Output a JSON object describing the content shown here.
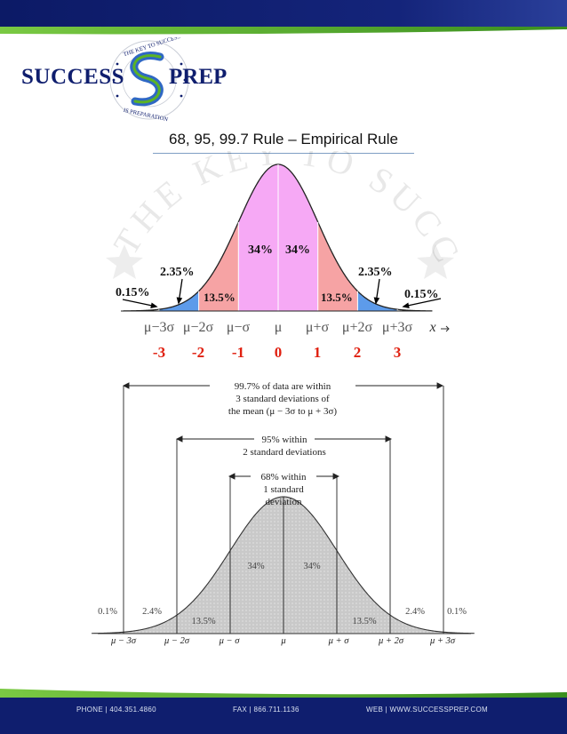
{
  "logo": {
    "left_word": "SUCCESS",
    "right_word": "PREP",
    "ring_top": "THE KEY TO SUCCESS",
    "ring_bottom": "IS PREPARATION"
  },
  "title": "68, 95, 99.7 Rule – Empirical Rule",
  "watermark_text": "THE KEY TO SUCCESS",
  "chart_data": [
    {
      "type": "area",
      "regions": [
        {
          "label": "34%",
          "from_sd": 0,
          "to_sd": 1
        },
        {
          "label": "34%",
          "from_sd": -1,
          "to_sd": 0
        },
        {
          "label": "13.5%",
          "from_sd": -2,
          "to_sd": -1
        },
        {
          "label": "13.5%",
          "from_sd": 1,
          "to_sd": 2
        },
        {
          "label": "2.35%",
          "from_sd": -3,
          "to_sd": -2
        },
        {
          "label": "2.35%",
          "from_sd": 2,
          "to_sd": 3
        },
        {
          "label": "0.15%",
          "from_sd": -4,
          "to_sd": -3
        },
        {
          "label": "0.15%",
          "from_sd": 3,
          "to_sd": 4
        }
      ],
      "x_ticks_symbolic": [
        "μ−3σ",
        "μ−2σ",
        "μ−σ",
        "μ",
        "μ+σ",
        "μ+2σ",
        "μ+3σ"
      ],
      "x_ticks_z": [
        "-3",
        "-2",
        "-1",
        "0",
        "1",
        "2",
        "3"
      ],
      "xlabel": "x",
      "colors": {
        "center": "#f6a9f5",
        "middle": "#f6a3a4",
        "tail": "#5d9bea",
        "curve": "#222222"
      }
    },
    {
      "type": "area",
      "regions": [
        {
          "label": "34%",
          "from_sd": -1,
          "to_sd": 0
        },
        {
          "label": "34%",
          "from_sd": 0,
          "to_sd": 1
        },
        {
          "label": "13.5%",
          "from_sd": -2,
          "to_sd": -1
        },
        {
          "label": "13.5%",
          "from_sd": 1,
          "to_sd": 2
        },
        {
          "label": "2.4%",
          "from_sd": -3,
          "to_sd": -2
        },
        {
          "label": "2.4%",
          "from_sd": 2,
          "to_sd": 3
        },
        {
          "label": "0.1%",
          "from_sd": -4,
          "to_sd": -3
        },
        {
          "label": "0.1%",
          "from_sd": 3,
          "to_sd": 4
        }
      ],
      "annotations": [
        {
          "lines": [
            "99.7% of data are within",
            "3 standard deviations of",
            "the mean (μ − 3σ to μ + 3σ)"
          ]
        },
        {
          "lines": [
            "95% within",
            "2 standard deviations"
          ]
        },
        {
          "lines": [
            "68% within",
            "1 standard",
            "deviation"
          ]
        }
      ],
      "x_ticks_symbolic": [
        "μ − 3σ",
        "μ − 2σ",
        "μ − σ",
        "μ",
        "μ + σ",
        "μ + 2σ",
        "μ + 3σ"
      ],
      "colors": {
        "fill": "#c9c9c9",
        "curve": "#333333"
      }
    }
  ],
  "footer": {
    "phone": "PHONE | 404.351.4860",
    "fax": "FAX | 866.711.1136",
    "web": "WEB | WWW.SUCCESSPREP.COM"
  },
  "colors": {
    "navy": "#0f1e6e",
    "green": "#5bb326",
    "blue": "#2f68c4"
  }
}
